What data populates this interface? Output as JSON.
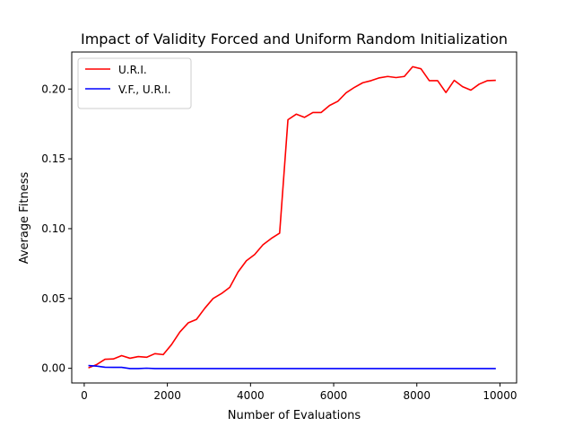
{
  "chart_data": {
    "type": "line",
    "title": "Impact of Validity Forced and Uniform Random Initialization",
    "xlabel": "Number of Evaluations",
    "ylabel": "Average Fitness",
    "xlim": [
      -300,
      10400
    ],
    "ylim": [
      -0.0105,
      0.2265
    ],
    "xticks": [
      0,
      2000,
      4000,
      6000,
      8000,
      10000
    ],
    "xtick_labels": [
      "0",
      "2000",
      "4000",
      "6000",
      "8000",
      "10000"
    ],
    "yticks": [
      0.0,
      0.05,
      0.1,
      0.15,
      0.2
    ],
    "ytick_labels": [
      "0.00",
      "0.05",
      "0.10",
      "0.15",
      "0.20"
    ],
    "grid": false,
    "legend": "top-left",
    "series": [
      {
        "name": "U.R.I.",
        "color": "#ff0000",
        "x": [
          100,
          300,
          500,
          700,
          900,
          1100,
          1300,
          1500,
          1700,
          1900,
          2100,
          2300,
          2500,
          2700,
          2900,
          3100,
          3300,
          3500,
          3700,
          3900,
          4100,
          4300,
          4500,
          4700,
          4900,
          5100,
          5300,
          5500,
          5700,
          5900,
          6100,
          6300,
          6500,
          6700,
          6900,
          7100,
          7300,
          7500,
          7700,
          7900,
          8100,
          8300,
          8500,
          8700,
          8900,
          9100,
          9300,
          9500,
          9700,
          9900
        ],
        "y": [
          0.0003,
          0.0027,
          0.0065,
          0.0067,
          0.0091,
          0.0072,
          0.0084,
          0.0079,
          0.0105,
          0.0098,
          0.017,
          0.026,
          0.0325,
          0.035,
          0.043,
          0.05,
          0.0535,
          0.058,
          0.069,
          0.077,
          0.0815,
          0.0885,
          0.093,
          0.0968,
          0.178,
          0.182,
          0.1797,
          0.1832,
          0.1832,
          0.1882,
          0.1912,
          0.1973,
          0.2012,
          0.2045,
          0.206,
          0.208,
          0.209,
          0.2082,
          0.209,
          0.216,
          0.2145,
          0.206,
          0.206,
          0.1975,
          0.2062,
          0.2017,
          0.1992,
          0.2035,
          0.206,
          0.2062
        ]
      },
      {
        "name": "V.F., U.R.I.",
        "color": "#0000ff",
        "x": [
          100,
          300,
          500,
          700,
          900,
          1100,
          1300,
          1500,
          1700,
          1900,
          2100,
          2300,
          2500,
          2700,
          2900,
          3100,
          3300,
          3500,
          3700,
          3900,
          4100,
          4300,
          4500,
          4700,
          4900,
          5100,
          5300,
          5500,
          5700,
          5900,
          6100,
          6300,
          6500,
          6700,
          6900,
          7100,
          7300,
          7500,
          7700,
          7900,
          8100,
          8300,
          8500,
          8700,
          8900,
          9100,
          9300,
          9500,
          9700,
          9900
        ],
        "y": [
          0.002,
          0.0016,
          0.0008,
          0.0007,
          0.0007,
          -0.0002,
          -0.0002,
          0.0001,
          -0.0002,
          -0.0002,
          -0.0002,
          -0.0002,
          -0.0002,
          -0.0002,
          -0.0002,
          -0.0002,
          -0.0002,
          -0.0002,
          -0.0002,
          -0.0002,
          -0.0002,
          -0.0002,
          -0.0002,
          -0.0002,
          -0.0002,
          -0.0002,
          -0.0002,
          -0.0002,
          -0.0002,
          -0.0002,
          -0.0002,
          -0.0002,
          -0.0002,
          -0.0002,
          -0.0002,
          -0.0002,
          -0.0002,
          -0.0002,
          -0.0002,
          -0.0002,
          -0.0002,
          -0.0002,
          -0.0002,
          -0.0002,
          -0.0002,
          -0.0002,
          -0.0002,
          -0.0002,
          -0.0002,
          -0.0002
        ]
      }
    ]
  }
}
